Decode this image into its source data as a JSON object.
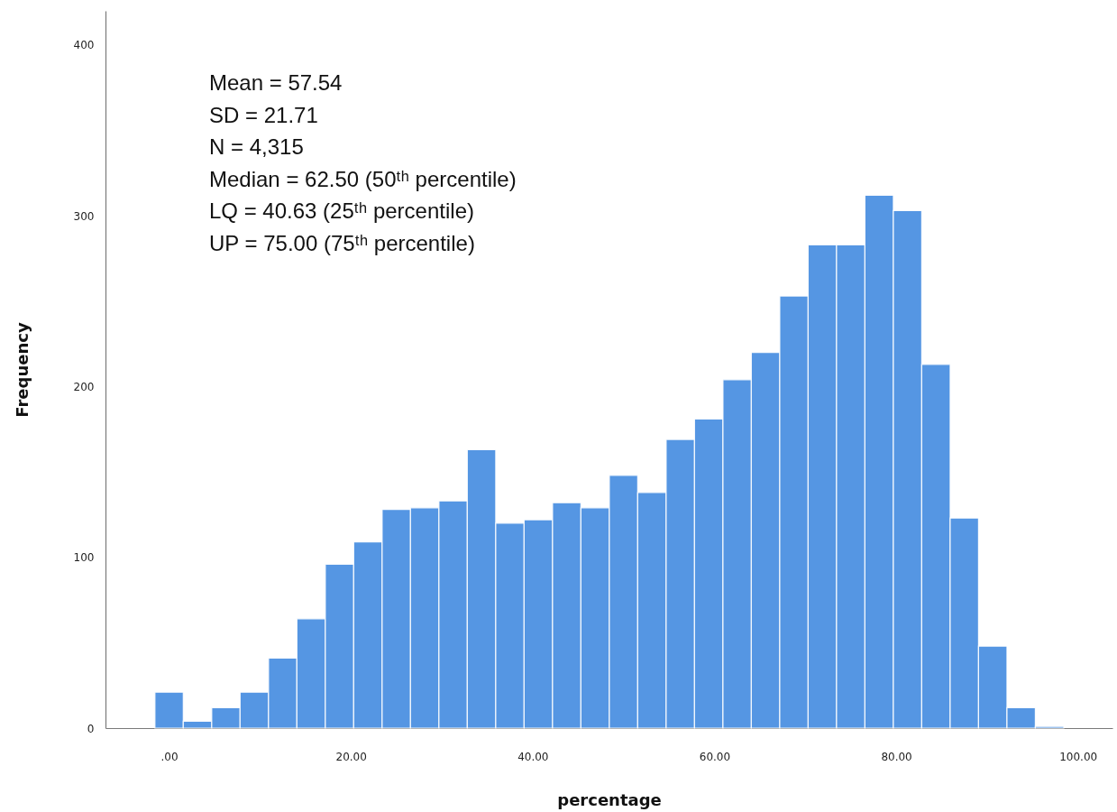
{
  "chart_data": {
    "type": "histogram",
    "xlabel": "percentage",
    "ylabel": "Frequency",
    "bins": [
      -1.56,
      1.56,
      4.69,
      7.81,
      10.94,
      14.06,
      17.19,
      20.31,
      23.44,
      26.56,
      29.69,
      32.81,
      35.94,
      39.06,
      42.19,
      45.31,
      48.44,
      51.56,
      54.69,
      57.81,
      60.94,
      64.06,
      67.19,
      70.31,
      73.44,
      76.56,
      79.69,
      82.81,
      85.94,
      89.06,
      92.19,
      95.31,
      98.44
    ],
    "values": [
      21,
      4,
      12,
      21,
      41,
      64,
      96,
      109,
      128,
      129,
      133,
      163,
      120,
      122,
      132,
      129,
      148,
      138,
      169,
      181,
      204,
      220,
      253,
      283,
      283,
      312,
      303,
      213,
      123,
      48,
      12,
      1
    ],
    "color": "#5596e3",
    "xlim": [
      -7,
      103.8
    ],
    "ylim": [
      0,
      420
    ],
    "xticks": [
      {
        "value": 0,
        "label": ".00"
      },
      {
        "value": 20,
        "label": "20.00"
      },
      {
        "value": 40,
        "label": "40.00"
      },
      {
        "value": 60,
        "label": "60.00"
      },
      {
        "value": 80,
        "label": "80.00"
      },
      {
        "value": 100,
        "label": "100.00"
      }
    ],
    "yticks": [
      0,
      100,
      200,
      300,
      400
    ],
    "grid": false,
    "annotations": [
      "Mean = 57.54",
      "SD = 21.71",
      "N = 4,315",
      "Median = 62.50 (50ᵗʰ percentile)",
      "LQ = 40.63 (25ᵗʰ percentile)",
      "UP = 75.00 (75ᵗʰ percentile)"
    ]
  }
}
